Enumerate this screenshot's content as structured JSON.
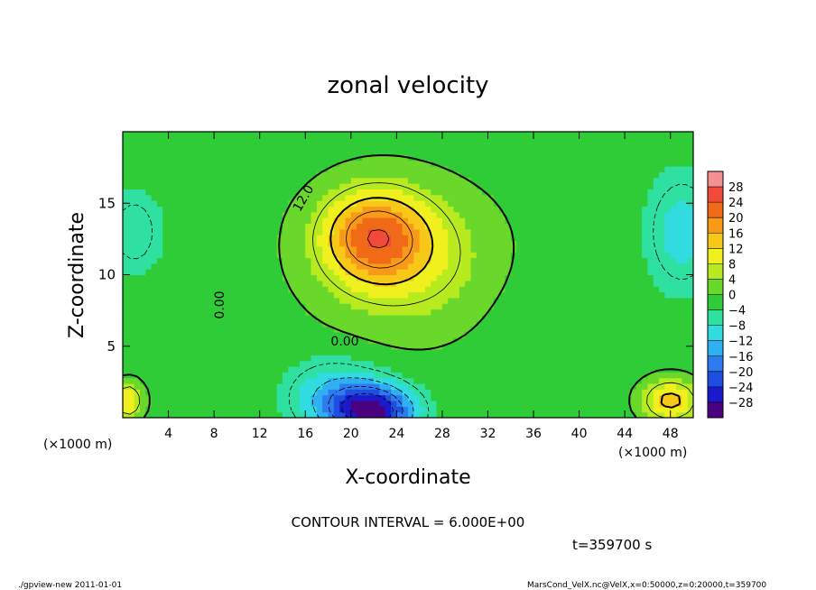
{
  "chart_data": {
    "type": "heatmap",
    "title": "zonal velocity",
    "xlabel": "X-coordinate",
    "ylabel": "Z-coordinate",
    "x_unit_note": "(×1000 m)",
    "x_unit_note_right": "(×1000 m)",
    "xlim": [
      0,
      50
    ],
    "ylim": [
      0,
      20
    ],
    "x_ticks": [
      4,
      8,
      12,
      16,
      20,
      24,
      28,
      32,
      36,
      40,
      44,
      48
    ],
    "y_ticks": [
      5,
      10,
      15
    ],
    "colorbar": {
      "levels": [
        -30,
        -28,
        -24,
        -20,
        -16,
        -12,
        -8,
        -4,
        0,
        4,
        8,
        12,
        16,
        20,
        24,
        28,
        30
      ],
      "tick_labels": [
        "28",
        "24",
        "20",
        "16",
        "12",
        "8",
        "4",
        "0",
        "−4",
        "−8",
        "−12",
        "−16",
        "−20",
        "−24",
        "−28"
      ],
      "colors": [
        "#4b0082",
        "#1a1acc",
        "#1f4fe0",
        "#2c7cf0",
        "#2fb0f0",
        "#30dce0",
        "#2fe0a0",
        "#2fcc38",
        "#6ad82a",
        "#b8ea20",
        "#f0f01e",
        "#f8c818",
        "#f89a18",
        "#f06a18",
        "#f04a3a",
        "#f49090"
      ]
    },
    "contour_interval_text": "CONTOUR INTERVAL = 6.000E+00",
    "contour_labels": [
      "12.0",
      "0.00",
      "0.00"
    ],
    "time_label": "t=359700 s",
    "contour_interval": 6,
    "features": [
      {
        "x": 22,
        "z": 12.8,
        "value": 17,
        "sx": 4.6,
        "sz": 3.2
      },
      {
        "x": 25,
        "z": 11,
        "value": 8,
        "sx": 8,
        "sz": 5
      },
      {
        "x": 22,
        "z": 0.5,
        "value": -28,
        "sx": 3.5,
        "sz": 1.8
      },
      {
        "x": 18.5,
        "z": 1.5,
        "value": -12,
        "sx": 4,
        "sz": 2.5
      },
      {
        "x": 48,
        "z": 1.2,
        "value": 14,
        "sx": 2.5,
        "sz": 1.5
      },
      {
        "x": 0.5,
        "z": 1.2,
        "value": 12,
        "sx": 1.3,
        "sz": 1.3
      },
      {
        "x": 49,
        "z": 13,
        "value": -10,
        "sx": 3,
        "sz": 4
      },
      {
        "x": 1,
        "z": 13,
        "value": -8,
        "sx": 2.5,
        "sz": 3
      },
      {
        "x": 34,
        "z": 8,
        "value": -3,
        "sx": 4,
        "sz": 5
      }
    ],
    "background_value": -2
  },
  "footer": {
    "left": "./gpview-new  2011-01-01",
    "right": "MarsCond_VelX.nc@VelX,x=0:50000,z=0:20000,t=359700"
  }
}
